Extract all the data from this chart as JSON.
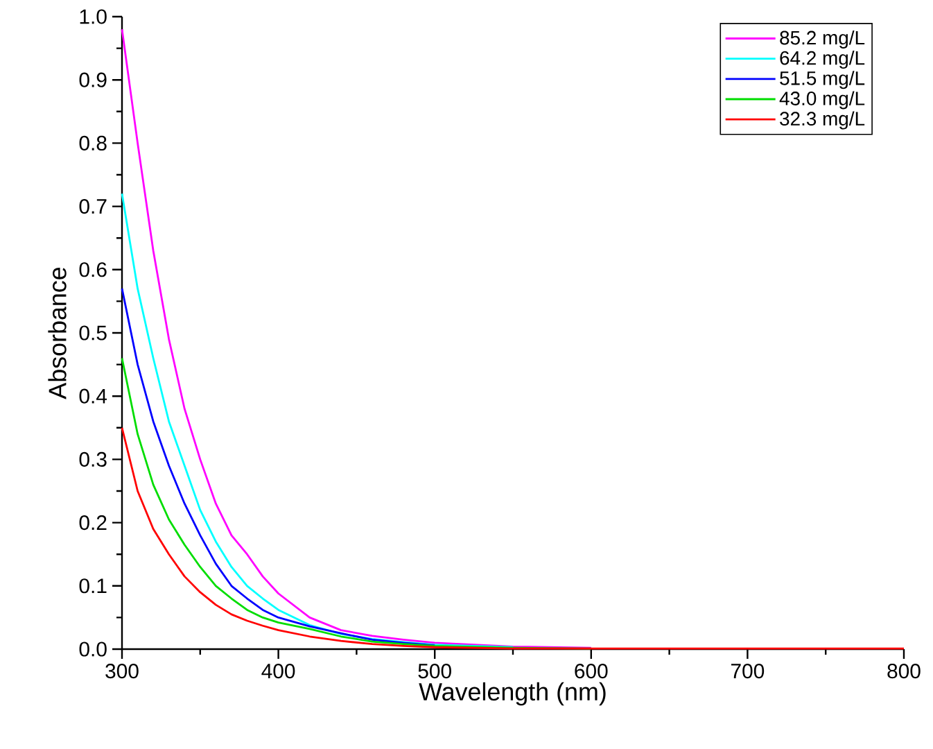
{
  "chart_data": {
    "type": "line",
    "xlabel": "Wavelength (nm)",
    "ylabel": "Absorbance",
    "x": [
      300,
      310,
      320,
      330,
      340,
      350,
      360,
      370,
      380,
      390,
      400,
      420,
      440,
      460,
      480,
      500,
      550,
      600,
      700,
      800
    ],
    "series": [
      {
        "name": "85.2 mg/L",
        "color": "#ff00ff",
        "values": [
          0.98,
          0.8,
          0.63,
          0.49,
          0.38,
          0.3,
          0.23,
          0.18,
          0.15,
          0.115,
          0.088,
          0.05,
          0.03,
          0.021,
          0.015,
          0.01,
          0.004,
          0.002,
          null,
          null
        ]
      },
      {
        "name": "64.2 mg/L",
        "color": "#00ffff",
        "values": [
          0.72,
          0.57,
          0.46,
          0.36,
          0.29,
          0.22,
          0.17,
          0.13,
          0.1,
          0.08,
          0.062,
          0.038,
          0.024,
          0.016,
          0.011,
          0.007,
          0.003,
          null,
          null,
          null
        ]
      },
      {
        "name": "51.5 mg/L",
        "color": "#0000ff",
        "values": [
          0.57,
          0.45,
          0.36,
          0.29,
          0.23,
          0.18,
          0.135,
          0.1,
          0.08,
          0.062,
          0.05,
          0.036,
          0.025,
          0.015,
          0.01,
          0.006,
          null,
          null,
          null,
          null
        ]
      },
      {
        "name": "43.0 mg/L",
        "color": "#00dd00",
        "values": [
          0.46,
          0.34,
          0.26,
          0.205,
          0.165,
          0.13,
          0.1,
          0.08,
          0.062,
          0.05,
          0.042,
          0.032,
          0.02,
          0.012,
          0.008,
          0.005,
          0.002,
          0.001,
          null,
          null
        ]
      },
      {
        "name": "32.3 mg/L",
        "color": "#ff0000",
        "values": [
          0.35,
          0.25,
          0.19,
          0.15,
          0.115,
          0.09,
          0.07,
          0.055,
          0.045,
          0.037,
          0.03,
          0.02,
          0.013,
          0.008,
          0.005,
          0.003,
          0.001,
          0.001,
          0.001,
          0.001
        ]
      }
    ],
    "xlim": [
      300,
      800
    ],
    "ylim": [
      0,
      1.0
    ],
    "xticks": [
      300,
      400,
      500,
      600,
      700,
      800
    ],
    "yticks": [
      "0.0",
      0.1,
      0.2,
      0.3,
      0.4,
      0.5,
      0.6,
      0.7,
      0.8,
      0.9,
      "1.0"
    ],
    "legend": "top right",
    "marker": "none",
    "line_style": "solid"
  }
}
